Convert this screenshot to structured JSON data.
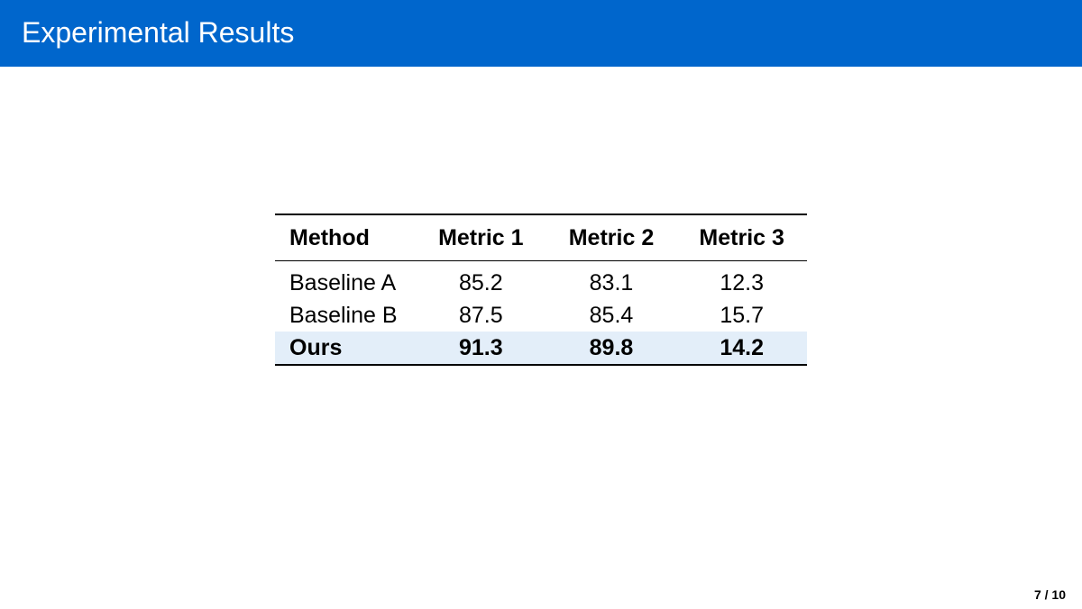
{
  "header": {
    "title": "Experimental Results"
  },
  "table": {
    "columns": [
      "Method",
      "Metric 1",
      "Metric 2",
      "Metric 3"
    ],
    "rows": [
      [
        "Baseline A",
        85.2,
        83.1,
        12.3
      ],
      [
        "Baseline B",
        87.5,
        85.4,
        15.7
      ],
      [
        "Ours",
        91.3,
        89.8,
        14.2
      ]
    ]
  },
  "footer": {
    "page": "7 / 10"
  }
}
